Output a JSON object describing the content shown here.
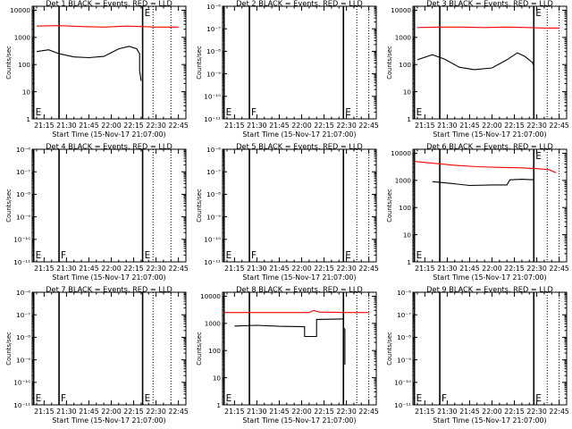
{
  "colors": {
    "events": "#000000",
    "lld": "#ff0000",
    "axes": "#000000"
  },
  "chart_data": [
    {
      "type": "line",
      "title": "Det 1 BLACK = Events, RED = LLD",
      "xlabel": "Start Time (15-Nov-17 21:07:00)",
      "ylabel": "Counts/sec",
      "yscale": "log",
      "ylim": [
        1,
        14000
      ],
      "y_ticks": [
        "1",
        "10",
        "100",
        "1000",
        "10000"
      ],
      "x_ticks": [
        "21:15",
        "21:30",
        "21:45",
        "22:00",
        "22:15",
        "22:30",
        "22:45"
      ],
      "xlim": [
        "21:07",
        "22:50"
      ],
      "markers": [
        {
          "time": "21:08",
          "label": "E",
          "position": "bottom"
        },
        {
          "time": "21:25",
          "label": "",
          "position": "bottom"
        },
        {
          "time": "22:21",
          "label": "E",
          "position": "top"
        }
      ],
      "dotted_lines": [
        "22:28",
        "22:40"
      ],
      "series": [
        {
          "name": "LLD",
          "color": "red",
          "x": [
            "21:10",
            "21:25",
            "21:40",
            "21:55",
            "22:10",
            "22:20",
            "22:30",
            "22:45"
          ],
          "y": [
            2600,
            2700,
            2500,
            2400,
            2600,
            2500,
            2400,
            2400
          ]
        },
        {
          "name": "Events",
          "color": "black",
          "x": [
            "21:10",
            "21:18",
            "21:25",
            "21:35",
            "21:45",
            "21:55",
            "22:05",
            "22:12",
            "22:17",
            "22:19",
            "22:19",
            "22:20"
          ],
          "y": [
            300,
            350,
            250,
            190,
            180,
            200,
            380,
            470,
            380,
            250,
            60,
            25
          ]
        }
      ]
    },
    {
      "type": "line",
      "title": "Det 2 BLACK = Events, RED = LLD",
      "xlabel": "Start Time (15-Nov-17 21:07:00)",
      "ylabel": "Counts/sec",
      "yscale": "log",
      "ylim": [
        1e-11,
        1e-06
      ],
      "y_ticks": [
        "10⁻¹¹",
        "10⁻¹⁰",
        "10⁻⁹",
        "10⁻⁸",
        "10⁻⁷",
        "10⁻⁶"
      ],
      "x_ticks": [
        "21:15",
        "21:30",
        "21:45",
        "22:00",
        "22:15",
        "22:30",
        "22:45"
      ],
      "xlim": [
        "21:07",
        "22:50"
      ],
      "markers": [
        {
          "time": "21:08",
          "label": "E",
          "position": "bottom"
        },
        {
          "time": "21:25",
          "label": "F",
          "position": "bottom"
        },
        {
          "time": "22:28",
          "label": "E",
          "position": "bottom"
        }
      ],
      "dotted_lines": [
        "22:37",
        "22:45"
      ],
      "series": []
    },
    {
      "type": "line",
      "title": "Det 3 BLACK = Events, RED = LLD",
      "xlabel": "Start Time (15-Nov-17 21:07:00)",
      "ylabel": "Counts/sec",
      "yscale": "log",
      "ylim": [
        1,
        14000
      ],
      "y_ticks": [
        "1",
        "10",
        "100",
        "1000",
        "10000"
      ],
      "x_ticks": [
        "21:15",
        "21:30",
        "21:45",
        "22:00",
        "22:15",
        "22:30",
        "22:45"
      ],
      "xlim": [
        "21:07",
        "22:50"
      ],
      "markers": [
        {
          "time": "21:08",
          "label": "E",
          "position": "bottom"
        },
        {
          "time": "21:25",
          "label": "",
          "position": "bottom"
        },
        {
          "time": "22:28",
          "label": "E",
          "position": "top"
        }
      ],
      "dotted_lines": [
        "22:37",
        "22:45"
      ],
      "series": [
        {
          "name": "LLD",
          "color": "red",
          "x": [
            "21:10",
            "21:25",
            "21:40",
            "21:55",
            "22:10",
            "22:25",
            "22:35",
            "22:45"
          ],
          "y": [
            2300,
            2400,
            2400,
            2300,
            2400,
            2300,
            2200,
            2200
          ]
        },
        {
          "name": "Events",
          "color": "black",
          "x": [
            "21:10",
            "21:20",
            "21:28",
            "21:38",
            "21:48",
            "22:00",
            "22:10",
            "22:17",
            "22:22",
            "22:27",
            "22:28",
            "22:28"
          ],
          "y": [
            150,
            230,
            160,
            80,
            65,
            75,
            150,
            270,
            200,
            120,
            90,
            18
          ]
        }
      ]
    },
    {
      "type": "line",
      "title": "Det 4 BLACK = Events, RED = LLD",
      "xlabel": "Start Time (15-Nov-17 21:07:00)",
      "ylabel": "Counts/sec",
      "yscale": "log",
      "ylim": [
        1e-11,
        1e-06
      ],
      "y_ticks": [
        "10⁻¹¹",
        "10⁻¹⁰",
        "10⁻⁹",
        "10⁻⁸",
        "10⁻⁷",
        "10⁻⁶"
      ],
      "x_ticks": [
        "21:15",
        "21:30",
        "21:45",
        "22:00",
        "22:15",
        "22:30",
        "22:45"
      ],
      "xlim": [
        "21:07",
        "22:50"
      ],
      "markers": [
        {
          "time": "21:08",
          "label": "E",
          "position": "bottom"
        },
        {
          "time": "21:25",
          "label": "F",
          "position": "bottom"
        },
        {
          "time": "22:21",
          "label": "E",
          "position": "bottom"
        }
      ],
      "dotted_lines": [
        "22:28",
        "22:40"
      ],
      "series": []
    },
    {
      "type": "line",
      "title": "Det 5 BLACK = Events, RED = LLD",
      "xlabel": "Start Time (15-Nov-17 21:07:00)",
      "ylabel": "Counts/sec",
      "yscale": "log",
      "ylim": [
        1e-11,
        1e-06
      ],
      "y_ticks": [
        "10⁻¹¹",
        "10⁻¹⁰",
        "10⁻⁹",
        "10⁻⁸",
        "10⁻⁷",
        "10⁻⁶"
      ],
      "x_ticks": [
        "21:15",
        "21:30",
        "21:45",
        "22:00",
        "22:15",
        "22:30",
        "22:45"
      ],
      "xlim": [
        "21:07",
        "22:50"
      ],
      "markers": [
        {
          "time": "21:08",
          "label": "E",
          "position": "bottom"
        },
        {
          "time": "21:25",
          "label": "F",
          "position": "bottom"
        },
        {
          "time": "22:28",
          "label": "E",
          "position": "bottom"
        }
      ],
      "dotted_lines": [
        "22:37",
        "22:45"
      ],
      "series": []
    },
    {
      "type": "line",
      "title": "Det 6 BLACK = Events, RED = LLD",
      "xlabel": "Start Time (15-Nov-17 21:07:00)",
      "ylabel": "Counts/sec",
      "yscale": "log",
      "ylim": [
        1,
        14000
      ],
      "y_ticks": [
        "1",
        "10",
        "100",
        "1000",
        "10000"
      ],
      "x_ticks": [
        "21:15",
        "21:30",
        "21:45",
        "22:00",
        "22:15",
        "22:30",
        "22:45"
      ],
      "xlim": [
        "21:07",
        "22:50"
      ],
      "markers": [
        {
          "time": "21:08",
          "label": "E",
          "position": "bottom"
        },
        {
          "time": "21:25",
          "label": "",
          "position": "bottom"
        },
        {
          "time": "22:28",
          "label": "E",
          "position": "top"
        }
      ],
      "dotted_lines": [
        "22:37",
        "22:45"
      ],
      "series": [
        {
          "name": "LLD",
          "color": "red",
          "x": [
            "21:08",
            "21:20",
            "21:35",
            "21:50",
            "22:05",
            "22:20",
            "22:30",
            "22:38",
            "22:43"
          ],
          "y": [
            5000,
            4300,
            3600,
            3200,
            3000,
            2900,
            2700,
            2500,
            1900
          ]
        },
        {
          "name": "Events",
          "color": "black",
          "x": [
            "21:20",
            "21:30",
            "21:45",
            "22:00",
            "22:10",
            "22:12",
            "22:20",
            "22:28",
            "22:28"
          ],
          "y": [
            900,
            800,
            650,
            680,
            680,
            1050,
            1100,
            1050,
            180
          ]
        }
      ]
    },
    {
      "type": "line",
      "title": "Det 7 BLACK = Events, RED = LLD",
      "xlabel": "Start Time (15-Nov-17 21:07:00)",
      "ylabel": "Counts/sec",
      "yscale": "log",
      "ylim": [
        1e-11,
        1e-06
      ],
      "y_ticks": [
        "10⁻¹¹",
        "10⁻¹⁰",
        "10⁻⁹",
        "10⁻⁸",
        "10⁻⁷",
        "10⁻⁶"
      ],
      "x_ticks": [
        "21:15",
        "21:30",
        "21:45",
        "22:00",
        "22:15",
        "22:30",
        "22:45"
      ],
      "xlim": [
        "21:07",
        "22:50"
      ],
      "markers": [
        {
          "time": "21:08",
          "label": "E",
          "position": "bottom"
        },
        {
          "time": "21:25",
          "label": "F",
          "position": "bottom"
        },
        {
          "time": "22:21",
          "label": "E",
          "position": "bottom"
        }
      ],
      "dotted_lines": [
        "22:28",
        "22:40"
      ],
      "series": []
    },
    {
      "type": "line",
      "title": "Det 8 BLACK = Events, RED = LLD",
      "xlabel": "Start Time (15-Nov-17 21:07:00)",
      "ylabel": "Counts/sec",
      "yscale": "log",
      "ylim": [
        1,
        14000
      ],
      "y_ticks": [
        "1",
        "10",
        "100",
        "1000",
        "10000"
      ],
      "x_ticks": [
        "21:15",
        "21:30",
        "21:45",
        "22:00",
        "22:15",
        "22:30",
        "22:45"
      ],
      "xlim": [
        "21:07",
        "22:50"
      ],
      "markers": [
        {
          "time": "21:08",
          "label": "E",
          "position": "bottom"
        },
        {
          "time": "21:25",
          "label": "",
          "position": "bottom"
        },
        {
          "time": "22:28",
          "label": "",
          "position": "bottom"
        }
      ],
      "dotted_lines": [
        "22:37",
        "22:45"
      ],
      "series": [
        {
          "name": "LLD",
          "color": "red",
          "x": [
            "21:08",
            "21:30",
            "21:50",
            "22:05",
            "22:08",
            "22:12",
            "22:30",
            "22:45"
          ],
          "y": [
            2500,
            2500,
            2500,
            2500,
            3000,
            2600,
            2500,
            2500
          ]
        },
        {
          "name": "Events",
          "color": "black",
          "x": [
            "21:15",
            "21:30",
            "21:45",
            "22:02",
            "22:02",
            "22:10",
            "22:10",
            "22:28",
            "22:28",
            "22:29",
            "22:29"
          ],
          "y": [
            800,
            850,
            780,
            750,
            330,
            330,
            1400,
            1450,
            700,
            600,
            30
          ]
        }
      ]
    },
    {
      "type": "line",
      "title": "Det 9 BLACK = Events, RED = LLD",
      "xlabel": "Start Time (15-Nov-17 21:07:00)",
      "ylabel": "Counts/sec",
      "yscale": "log",
      "ylim": [
        1e-11,
        1e-06
      ],
      "y_ticks": [
        "10⁻¹¹",
        "10⁻¹⁰",
        "10⁻⁹",
        "10⁻⁸",
        "10⁻⁷",
        "10⁻⁶"
      ],
      "x_ticks": [
        "21:15",
        "21:30",
        "21:45",
        "22:00",
        "22:15",
        "22:30",
        "22:45"
      ],
      "xlim": [
        "21:07",
        "22:50"
      ],
      "markers": [
        {
          "time": "21:08",
          "label": "E",
          "position": "bottom"
        },
        {
          "time": "21:25",
          "label": "F",
          "position": "bottom"
        },
        {
          "time": "22:28",
          "label": "E",
          "position": "bottom"
        }
      ],
      "dotted_lines": [
        "22:37",
        "22:45"
      ],
      "series": []
    }
  ]
}
